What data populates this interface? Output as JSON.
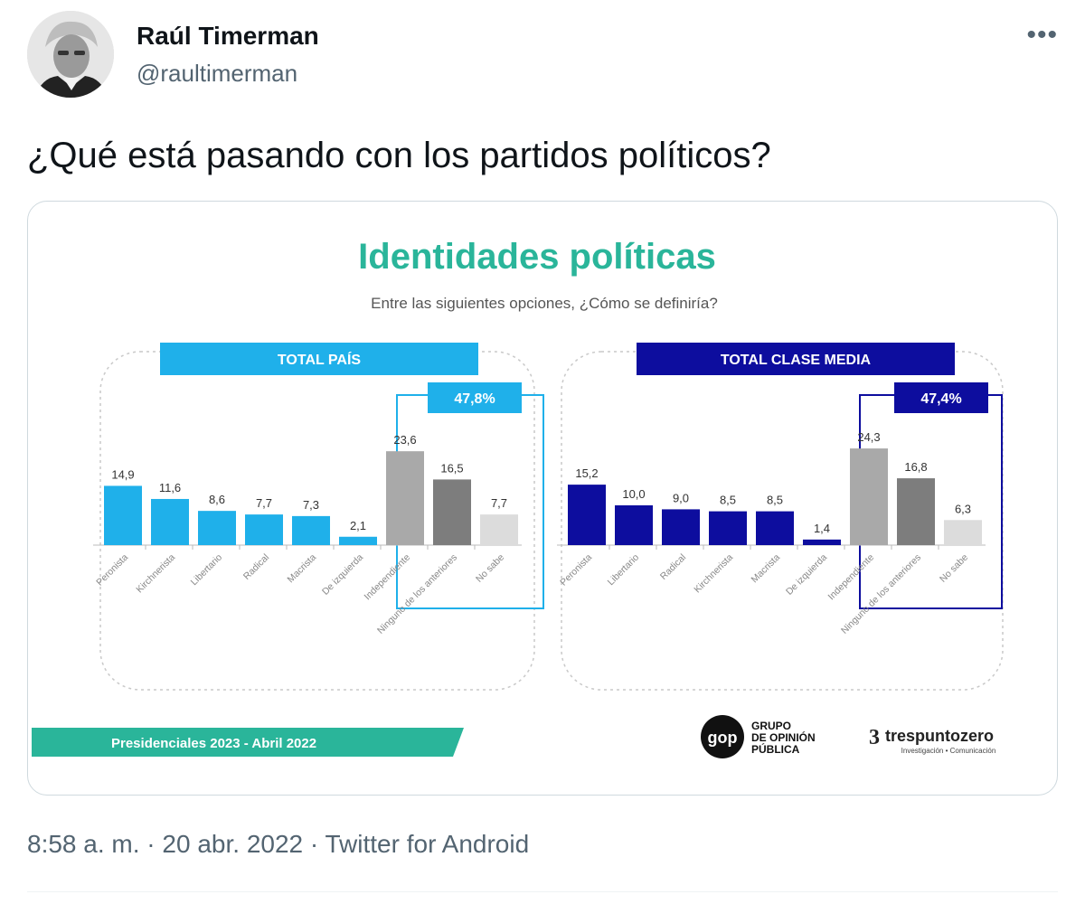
{
  "tweet": {
    "author_name": "Raúl Timerman",
    "author_handle": "@raultimerman",
    "more_icon": "more-icon",
    "text": "¿Qué está pasando con los partidos políticos?",
    "time": "8:58 a. m.",
    "date": "20 abr. 2022",
    "source": "Twitter for Android",
    "separator": "·"
  },
  "colors": {
    "title": "#2ab59a",
    "total_pais": "#1fb0ea",
    "clase_media": "#0d0d9e",
    "gray_dark": "#7d7d7d",
    "gray_mid": "#a9a9a9",
    "gray_light": "#dcdcdc",
    "footer_band": "#2ab59a"
  },
  "chart_data": [
    {
      "type": "bar",
      "title": "Identidades políticas",
      "subtitle": "Entre las siguientes opciones, ¿Cómo se definiría?",
      "panel_title": "TOTAL PAÍS",
      "highlight_label": "47,8%",
      "categories": [
        "Peronista",
        "Kirchnerista",
        "Libertario",
        "Radical",
        "Macrista",
        "De izquierda",
        "Independiente",
        "Ninguno de los anteriores",
        "No sabe"
      ],
      "values": [
        14.9,
        11.6,
        8.6,
        7.7,
        7.3,
        2.1,
        23.6,
        16.5,
        7.7
      ],
      "value_labels": [
        "14,9",
        "11,6",
        "8,6",
        "7,7",
        "7,3",
        "2,1",
        "23,6",
        "16,5",
        "7,7"
      ]
    },
    {
      "type": "bar",
      "panel_title": "TOTAL CLASE MEDIA",
      "highlight_label": "47,4%",
      "categories": [
        "Peronista",
        "Libertario",
        "Radical",
        "Kirchnerista",
        "Macrista",
        "De izquierda",
        "Independiente",
        "Ninguno de los anteriores",
        "No sabe"
      ],
      "values": [
        15.2,
        10.0,
        9.0,
        8.5,
        8.5,
        1.4,
        24.3,
        16.8,
        6.3
      ],
      "value_labels": [
        "15,2",
        "10,0",
        "9,0",
        "8,5",
        "8,5",
        "1,4",
        "24,3",
        "16,8",
        "6,3"
      ]
    }
  ],
  "slide_footer": {
    "band_text": "Presidenciales 2023 - Abril 2022",
    "gop_lines": [
      "GRUPO",
      "DE OPINIÓN",
      "PÚBLICA"
    ],
    "gop_mark": "gop",
    "tres_name": "trespuntozero",
    "tres_mark": "3",
    "tres_sub": "Investigación • Comunicación"
  }
}
